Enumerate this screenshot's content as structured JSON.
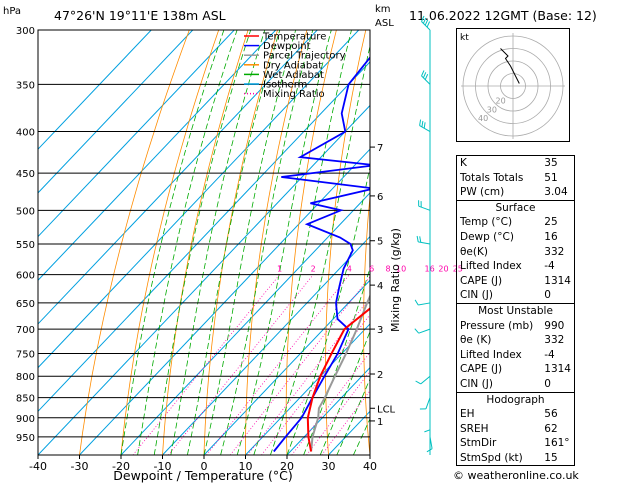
{
  "header": {
    "location": "47°26'N  19°11'E  138m  ASL",
    "datetime": "11.06.2022  12GMT  (Base: 12)",
    "hpa_unit": "hPa",
    "km_unit_line1": "km",
    "km_unit_line2": "ASL"
  },
  "legend": [
    {
      "label": "Temperature",
      "color": "#ff0000",
      "dash": "solid"
    },
    {
      "label": "Dewpoint",
      "color": "#0000ff",
      "dash": "solid"
    },
    {
      "label": "Parcel Trajectory",
      "color": "#999999",
      "dash": "solid"
    },
    {
      "label": "Dry Adiabat",
      "color": "#ff8c00",
      "dash": "solid"
    },
    {
      "label": "Wet Adiabat",
      "color": "#00aa00",
      "dash": "solid"
    },
    {
      "label": "Isotherm",
      "color": "#00a0e0",
      "dash": "solid"
    },
    {
      "label": "Mixing Ratio",
      "color": "#ff00aa",
      "dash": "dotted"
    }
  ],
  "chart_data": {
    "type": "skew-t log-p",
    "xlabel": "Dewpoint / Temperature (°C)",
    "ylabel_left": "hPa",
    "ylabel_right": "Mixing Ratio (g/kg)",
    "x_ticks": [
      -40,
      -30,
      -20,
      -10,
      0,
      10,
      20,
      30,
      40
    ],
    "pressure_ticks": [
      300,
      350,
      400,
      450,
      500,
      550,
      600,
      650,
      700,
      750,
      800,
      850,
      900,
      950
    ],
    "altitude_ticks": [
      {
        "label": "7",
        "p": 418
      },
      {
        "label": "6",
        "p": 480
      },
      {
        "label": "5",
        "p": 545
      },
      {
        "label": "4",
        "p": 618
      },
      {
        "label": "3",
        "p": 700
      },
      {
        "label": "2",
        "p": 795
      },
      {
        "label": "1",
        "p": 908
      },
      {
        "label": "LCL",
        "p": 876
      }
    ],
    "mixing_ratio_labels": [
      "1",
      "2",
      "4",
      "6",
      "8",
      "10",
      "16",
      "20",
      "25"
    ],
    "mixing_ratio_values": [
      1,
      2,
      4,
      6,
      8,
      10,
      16,
      20,
      25
    ],
    "temperature_profile": [
      [
        990,
        25
      ],
      [
        950,
        21
      ],
      [
        900,
        16.5
      ],
      [
        850,
        13
      ],
      [
        800,
        10
      ],
      [
        750,
        7.5
      ],
      [
        700,
        5
      ],
      [
        660,
        6.5
      ],
      [
        620,
        3
      ],
      [
        600,
        1
      ],
      [
        550,
        -2
      ],
      [
        500,
        -6
      ],
      [
        450,
        -10.5
      ],
      [
        420,
        -13.5
      ],
      [
        400,
        -16
      ],
      [
        350,
        -22
      ],
      [
        300,
        -28
      ]
    ],
    "dewpoint_profile": [
      [
        990,
        16
      ],
      [
        950,
        15.5
      ],
      [
        900,
        15
      ],
      [
        850,
        13
      ],
      [
        800,
        11
      ],
      [
        750,
        9
      ],
      [
        700,
        6
      ],
      [
        680,
        1
      ],
      [
        650,
        -3
      ],
      [
        620,
        -6
      ],
      [
        590,
        -9
      ],
      [
        560,
        -11
      ],
      [
        550,
        -13
      ],
      [
        540,
        -17
      ],
      [
        520,
        -28
      ],
      [
        500,
        -23
      ],
      [
        490,
        -32
      ],
      [
        470,
        -20
      ],
      [
        455,
        -45
      ],
      [
        440,
        -25
      ],
      [
        430,
        -45
      ],
      [
        400,
        -40
      ],
      [
        380,
        -45
      ],
      [
        350,
        -50
      ],
      [
        300,
        -52
      ]
    ],
    "parcel_profile": [
      [
        990,
        25
      ],
      [
        950,
        22
      ],
      [
        900,
        19
      ],
      [
        876,
        17
      ],
      [
        850,
        16
      ],
      [
        800,
        13.5
      ],
      [
        750,
        11
      ],
      [
        700,
        8
      ],
      [
        650,
        4.5
      ],
      [
        600,
        1
      ],
      [
        550,
        -3
      ],
      [
        500,
        -7.5
      ],
      [
        450,
        -12.5
      ],
      [
        400,
        -18
      ],
      [
        350,
        -24.5
      ],
      [
        300,
        -32
      ]
    ],
    "wind_barbs": [
      {
        "p": 300,
        "dir": 315,
        "speed_kt": 35
      },
      {
        "p": 350,
        "dir": 315,
        "speed_kt": 30
      },
      {
        "p": 400,
        "dir": 300,
        "speed_kt": 25
      },
      {
        "p": 500,
        "dir": 290,
        "speed_kt": 20
      },
      {
        "p": 550,
        "dir": 280,
        "speed_kt": 15
      },
      {
        "p": 650,
        "dir": 260,
        "speed_kt": 10
      },
      {
        "p": 700,
        "dir": 250,
        "speed_kt": 10
      },
      {
        "p": 800,
        "dir": 230,
        "speed_kt": 10
      },
      {
        "p": 850,
        "dir": 200,
        "speed_kt": 10
      },
      {
        "p": 900,
        "dir": 180,
        "speed_kt": 10
      },
      {
        "p": 950,
        "dir": 170,
        "speed_kt": 10
      }
    ]
  },
  "hodograph": {
    "unit_label": "kt",
    "ring_labels": [
      "40",
      "30",
      "20"
    ],
    "trace": [
      [
        5,
        2
      ],
      [
        2,
        8
      ],
      [
        -2,
        16
      ],
      [
        -6,
        22
      ],
      [
        -4,
        24
      ],
      [
        -10,
        30
      ]
    ]
  },
  "indices": {
    "general": [
      {
        "label": "K",
        "value": "35"
      },
      {
        "label": "Totals Totals",
        "value": "51"
      },
      {
        "label": "PW (cm)",
        "value": "3.04"
      }
    ],
    "surface_title": "Surface",
    "surface": [
      {
        "label": "Temp (°C)",
        "value": "25"
      },
      {
        "label": "Dewp (°C)",
        "value": "16"
      },
      {
        "label": "θe(K)",
        "value": "332"
      },
      {
        "label": "Lifted Index",
        "value": "-4"
      },
      {
        "label": "CAPE (J)",
        "value": "1314"
      },
      {
        "label": "CIN (J)",
        "value": "0"
      }
    ],
    "most_unstable_title": "Most Unstable",
    "most_unstable": [
      {
        "label": "Pressure (mb)",
        "value": "990"
      },
      {
        "label": "θe (K)",
        "value": "332"
      },
      {
        "label": "Lifted Index",
        "value": "-4"
      },
      {
        "label": "CAPE (J)",
        "value": "1314"
      },
      {
        "label": "CIN (J)",
        "value": "0"
      }
    ],
    "hodograph_title": "Hodograph",
    "hodograph_rows": [
      {
        "label": "EH",
        "value": "56"
      },
      {
        "label": "SREH",
        "value": "62"
      },
      {
        "label": "StmDir",
        "value": "161°"
      },
      {
        "label": "StmSpd (kt)",
        "value": "15"
      }
    ]
  },
  "credit": "© weatheronline.co.uk",
  "colors": {
    "temperature": "#ff0000",
    "dewpoint": "#0000ff",
    "parcel": "#999999",
    "dry_adiabat": "#ff8c00",
    "wet_adiabat": "#00aa00",
    "isotherm": "#00a0e0",
    "mixing_ratio": "#ff00aa",
    "wind_barb": "#00c0c0"
  }
}
